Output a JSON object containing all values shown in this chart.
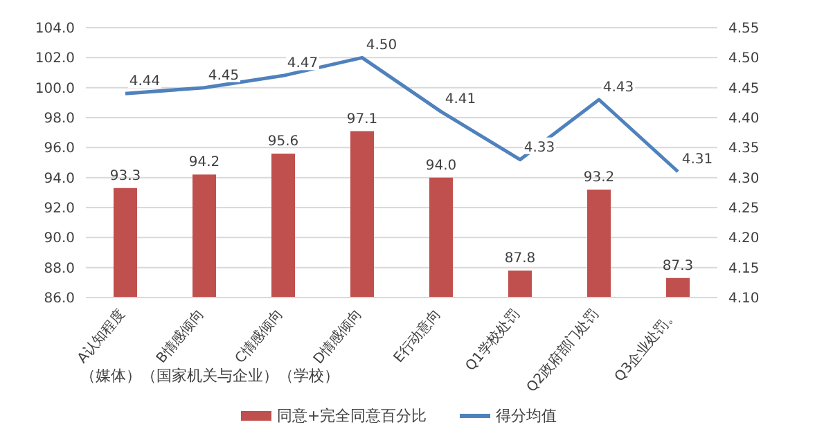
{
  "chart_data": {
    "type": "bar",
    "categories": [
      "A认知程度",
      "B情感倾向",
      "C情感倾向",
      "D情感倾向",
      "E行动意向",
      "Q1学校处罚",
      "Q2政府部门处罚",
      "Q3企业处罚。"
    ],
    "series": [
      {
        "name": "同意+完全同意百分比",
        "color": "#c0504d",
        "values": [
          93.3,
          94.2,
          95.6,
          97.1,
          94.0,
          87.8,
          93.2,
          87.3
        ],
        "value_labels": [
          "93.3",
          "94.2",
          "95.6",
          "97.1",
          "94.0",
          "87.8",
          "93.2",
          "87.3"
        ]
      },
      {
        "name": "得分均值",
        "type": "line",
        "axis": "y2",
        "color": "#4f81bd",
        "values": [
          4.44,
          4.45,
          4.47,
          4.5,
          4.41,
          4.33,
          4.43,
          4.31
        ],
        "value_labels": [
          "4.44",
          "4.45",
          "4.47",
          "4.50",
          "4.41",
          "4.33",
          "4.43",
          "4.31"
        ]
      }
    ],
    "ylim": [
      86,
      104
    ],
    "yticks": [
      {
        "value": 86,
        "label": "86.0"
      },
      {
        "value": 88,
        "label": "88.0"
      },
      {
        "value": 90,
        "label": "90.0"
      },
      {
        "value": 92,
        "label": "92.0"
      },
      {
        "value": 94,
        "label": "94.0"
      },
      {
        "value": 96,
        "label": "96.0"
      },
      {
        "value": 98,
        "label": "98.0"
      },
      {
        "value": 100,
        "label": "100.0"
      },
      {
        "value": 102,
        "label": "102.0"
      },
      {
        "value": 104,
        "label": "104.0"
      }
    ],
    "y2lim": [
      4.1,
      4.55
    ],
    "y2ticks": [
      {
        "value": 4.1,
        "label": "4.10"
      },
      {
        "value": 4.15,
        "label": "4.15"
      },
      {
        "value": 4.2,
        "label": "4.20"
      },
      {
        "value": 4.25,
        "label": "4.25"
      },
      {
        "value": 4.3,
        "label": "4.30"
      },
      {
        "value": 4.35,
        "label": "4.35"
      },
      {
        "value": 4.4,
        "label": "4.40"
      },
      {
        "value": 4.45,
        "label": "4.45"
      },
      {
        "value": 4.5,
        "label": "4.50"
      },
      {
        "value": 4.55,
        "label": "4.55"
      }
    ],
    "annotations": [
      "（媒体）（国家机关与企业）（学校）"
    ],
    "grid": "y",
    "legend": "bottom",
    "marker": "none"
  }
}
